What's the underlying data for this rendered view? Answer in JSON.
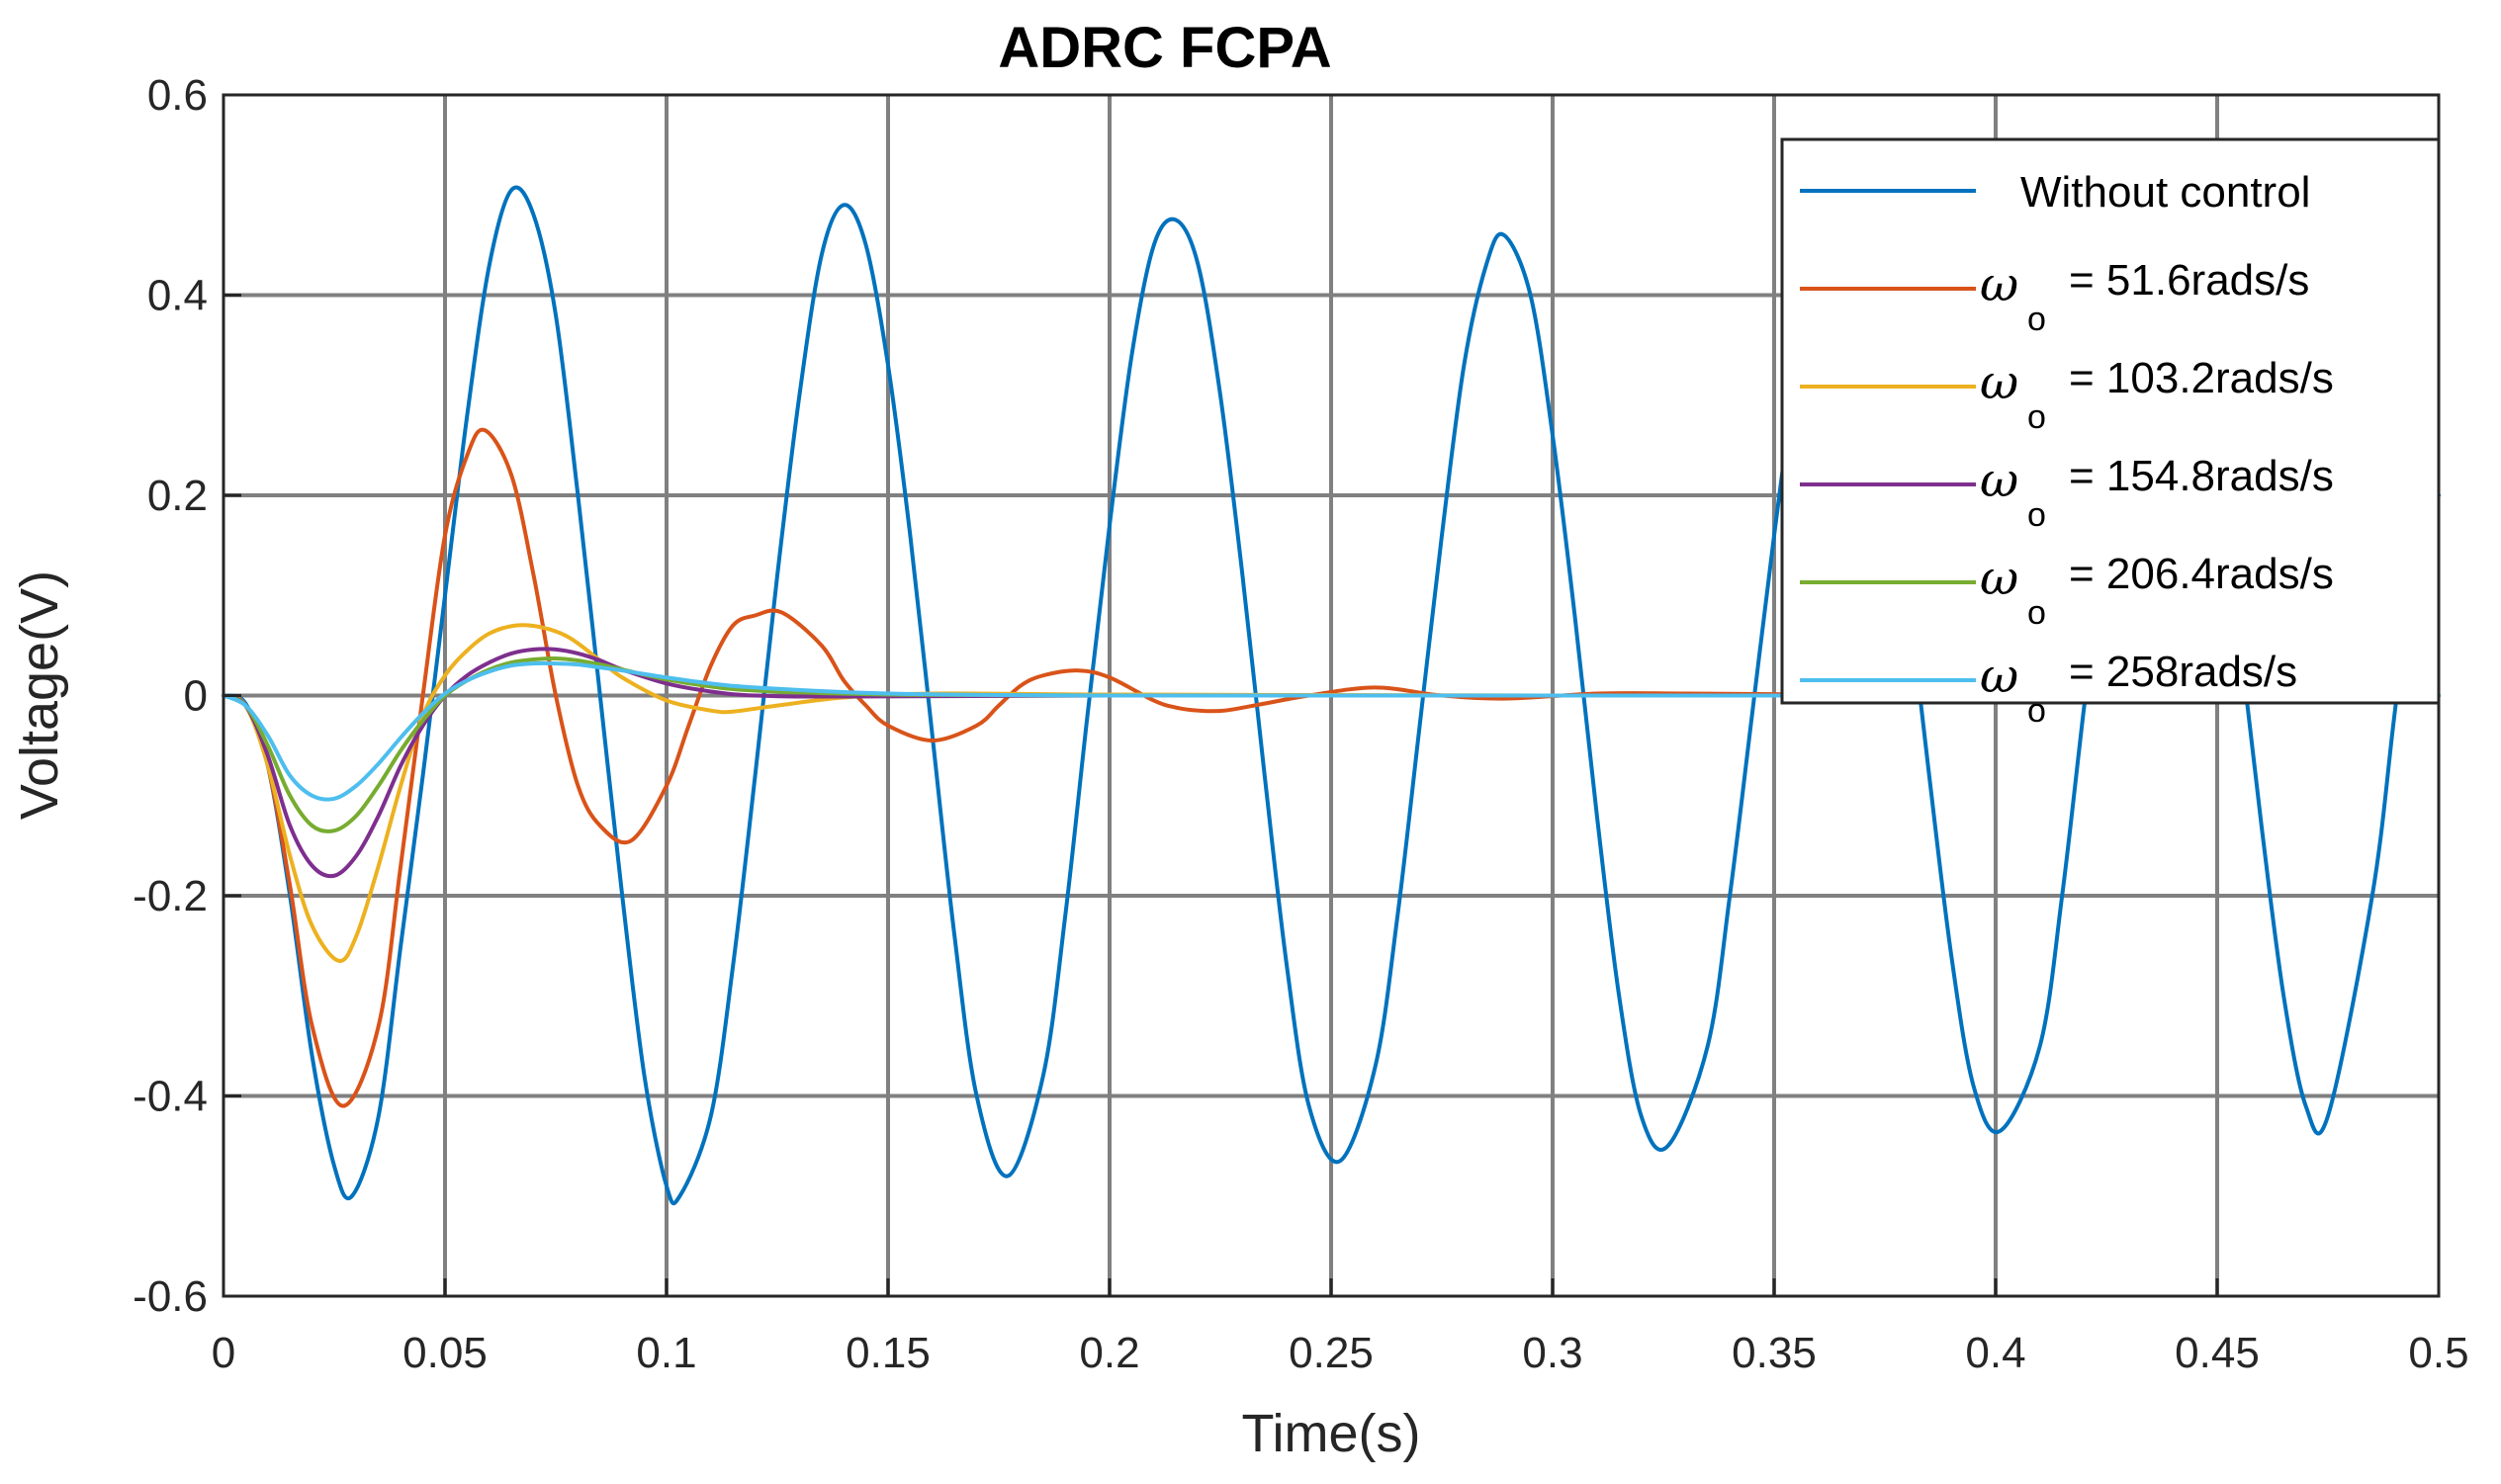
{
  "chart_data": {
    "type": "line",
    "title": "ADRC FCPA",
    "xlabel": "Time(s)",
    "ylabel": "Voltage(V)",
    "xlim": [
      0,
      0.5
    ],
    "ylim": [
      -0.6,
      0.6
    ],
    "grid": true,
    "legend_position": "top-right",
    "x_ticks": [
      0,
      0.05,
      0.1,
      0.15,
      0.2,
      0.25,
      0.3,
      0.35,
      0.4,
      0.45,
      0.5
    ],
    "x_tick_labels": [
      "0",
      "0.05",
      "0.1",
      "0.15",
      "0.2",
      "0.25",
      "0.3",
      "0.35",
      "0.4",
      "0.45",
      "0.5"
    ],
    "y_ticks": [
      -0.6,
      -0.4,
      -0.2,
      0,
      0.2,
      0.4,
      0.6
    ],
    "y_tick_labels": [
      "-0.6",
      "-0.4",
      "-0.2",
      "0",
      "0.2",
      "0.4",
      "0.6"
    ],
    "series": [
      {
        "name": "Without control",
        "legend_label": "Without control",
        "color": "#0072BD",
        "x": [
          0,
          0.005,
          0.01,
          0.015,
          0.02,
          0.025,
          0.029,
          0.035,
          0.04,
          0.045,
          0.05,
          0.055,
          0.06,
          0.065,
          0.07,
          0.075,
          0.08,
          0.085,
          0.09,
          0.095,
          0.1,
          0.103,
          0.11,
          0.115,
          0.12,
          0.125,
          0.13,
          0.135,
          0.14,
          0.145,
          0.15,
          0.155,
          0.16,
          0.165,
          0.17,
          0.177,
          0.185,
          0.19,
          0.195,
          0.2,
          0.205,
          0.21,
          0.215,
          0.22,
          0.225,
          0.23,
          0.235,
          0.24,
          0.245,
          0.252,
          0.26,
          0.265,
          0.27,
          0.275,
          0.28,
          0.285,
          0.289,
          0.295,
          0.3,
          0.305,
          0.31,
          0.315,
          0.32,
          0.326,
          0.335,
          0.34,
          0.345,
          0.35,
          0.355,
          0.36,
          0.364,
          0.37,
          0.375,
          0.38,
          0.385,
          0.39,
          0.395,
          0.401,
          0.41,
          0.415,
          0.42,
          0.425,
          0.43,
          0.435,
          0.439,
          0.445,
          0.45,
          0.455,
          0.46,
          0.465,
          0.47,
          0.475,
          0.485,
          0.49,
          0.495,
          0.5
        ],
        "y": [
          0,
          -0.008,
          -0.07,
          -0.2,
          -0.36,
          -0.47,
          -0.5,
          -0.42,
          -0.25,
          -0.08,
          0.1,
          0.28,
          0.43,
          0.505,
          0.48,
          0.38,
          0.2,
          0.0,
          -0.2,
          -0.38,
          -0.49,
          -0.5,
          -0.42,
          -0.27,
          -0.08,
          0.12,
          0.3,
          0.44,
          0.49,
          0.45,
          0.33,
          0.16,
          -0.04,
          -0.24,
          -0.4,
          -0.48,
          -0.38,
          -0.22,
          -0.02,
          0.17,
          0.34,
          0.45,
          0.475,
          0.43,
          0.3,
          0.12,
          -0.08,
          -0.27,
          -0.41,
          -0.465,
          -0.37,
          -0.22,
          -0.03,
          0.16,
          0.33,
          0.43,
          0.46,
          0.4,
          0.26,
          0.08,
          -0.12,
          -0.3,
          -0.42,
          -0.45,
          -0.35,
          -0.2,
          -0.02,
          0.16,
          0.32,
          0.42,
          0.445,
          0.4,
          0.28,
          0.11,
          -0.08,
          -0.26,
          -0.39,
          -0.435,
          -0.35,
          -0.2,
          -0.01,
          0.17,
          0.33,
          0.41,
          0.43,
          0.37,
          0.24,
          0.06,
          -0.13,
          -0.3,
          -0.41,
          -0.42,
          -0.2,
          -0.02,
          0.16,
          0.2
        ]
      },
      {
        "name": "omega_o = 51.6rads/s",
        "legend_label": "= 51.6rads/s",
        "color": "#D95319",
        "x": [
          0,
          0.005,
          0.01,
          0.015,
          0.02,
          0.027,
          0.035,
          0.04,
          0.045,
          0.05,
          0.055,
          0.059,
          0.065,
          0.07,
          0.075,
          0.08,
          0.085,
          0.092,
          0.1,
          0.105,
          0.11,
          0.115,
          0.12,
          0.126,
          0.135,
          0.14,
          0.145,
          0.15,
          0.16,
          0.17,
          0.175,
          0.18,
          0.185,
          0.193,
          0.2,
          0.21,
          0.215,
          0.22,
          0.226,
          0.235,
          0.245,
          0.26,
          0.275,
          0.29,
          0.31,
          0.33,
          0.36,
          0.4,
          0.5
        ],
        "y": [
          0,
          -0.01,
          -0.07,
          -0.19,
          -0.33,
          -0.41,
          -0.33,
          -0.17,
          0.0,
          0.16,
          0.24,
          0.265,
          0.22,
          0.12,
          0.0,
          -0.09,
          -0.13,
          -0.145,
          -0.09,
          -0.03,
          0.03,
          0.07,
          0.08,
          0.083,
          0.05,
          0.015,
          -0.01,
          -0.03,
          -0.045,
          -0.03,
          -0.01,
          0.01,
          0.02,
          0.025,
          0.018,
          -0.005,
          -0.012,
          -0.015,
          -0.015,
          -0.008,
          0.0,
          0.008,
          0.0,
          -0.003,
          0.002,
          0.002,
          0.001,
          0.0,
          0.0
        ]
      },
      {
        "name": "omega_o = 103.2rads/s",
        "legend_label": "= 103.2rads/s",
        "color": "#EDB120",
        "x": [
          0,
          0.005,
          0.01,
          0.015,
          0.02,
          0.026,
          0.03,
          0.035,
          0.04,
          0.045,
          0.05,
          0.055,
          0.06,
          0.066,
          0.072,
          0.078,
          0.085,
          0.09,
          0.1,
          0.11,
          0.115,
          0.125,
          0.14,
          0.16,
          0.2,
          0.3,
          0.5
        ],
        "y": [
          0,
          -0.01,
          -0.07,
          -0.16,
          -0.23,
          -0.265,
          -0.24,
          -0.17,
          -0.09,
          -0.02,
          0.02,
          0.045,
          0.062,
          0.07,
          0.068,
          0.058,
          0.035,
          0.018,
          -0.005,
          -0.015,
          -0.016,
          -0.01,
          -0.002,
          0.002,
          0.001,
          0.0,
          0.0
        ]
      },
      {
        "name": "omega_o = 154.8rads/s",
        "legend_label": "= 154.8rads/s",
        "color": "#7E2F8E",
        "x": [
          0,
          0.005,
          0.01,
          0.015,
          0.02,
          0.025,
          0.03,
          0.035,
          0.04,
          0.045,
          0.05,
          0.055,
          0.06,
          0.065,
          0.07,
          0.075,
          0.08,
          0.085,
          0.09,
          0.1,
          0.11,
          0.12,
          0.14,
          0.2,
          0.3,
          0.5
        ],
        "y": [
          0,
          -0.01,
          -0.06,
          -0.13,
          -0.17,
          -0.18,
          -0.16,
          -0.12,
          -0.07,
          -0.03,
          0.0,
          0.02,
          0.033,
          0.042,
          0.046,
          0.046,
          0.042,
          0.035,
          0.026,
          0.012,
          0.004,
          0.0,
          -0.001,
          0.0,
          0.0,
          0.0
        ]
      },
      {
        "name": "omega_o = 206.4rads/s",
        "legend_label": "= 206.4rads/s",
        "color": "#77AC30",
        "x": [
          0,
          0.005,
          0.01,
          0.015,
          0.02,
          0.025,
          0.03,
          0.035,
          0.04,
          0.045,
          0.05,
          0.055,
          0.06,
          0.065,
          0.07,
          0.075,
          0.08,
          0.085,
          0.09,
          0.1,
          0.11,
          0.12,
          0.15,
          0.2,
          0.3,
          0.5
        ],
        "y": [
          0,
          -0.01,
          -0.05,
          -0.1,
          -0.13,
          -0.135,
          -0.12,
          -0.09,
          -0.055,
          -0.025,
          0.0,
          0.015,
          0.026,
          0.033,
          0.036,
          0.037,
          0.035,
          0.031,
          0.026,
          0.016,
          0.009,
          0.005,
          0.001,
          0.0,
          0.0,
          0.0
        ]
      },
      {
        "name": "omega_o = 258rads/s",
        "legend_label": "= 258rads/s",
        "color": "#4DBEEE",
        "x": [
          0,
          0.005,
          0.01,
          0.015,
          0.02,
          0.025,
          0.03,
          0.035,
          0.04,
          0.045,
          0.05,
          0.055,
          0.06,
          0.065,
          0.07,
          0.075,
          0.08,
          0.085,
          0.09,
          0.1,
          0.11,
          0.12,
          0.15,
          0.2,
          0.3,
          0.5
        ],
        "y": [
          0,
          -0.01,
          -0.04,
          -0.08,
          -0.1,
          -0.103,
          -0.09,
          -0.068,
          -0.042,
          -0.018,
          0.002,
          0.015,
          0.024,
          0.03,
          0.032,
          0.032,
          0.031,
          0.028,
          0.025,
          0.018,
          0.012,
          0.008,
          0.002,
          0.0,
          0.0,
          0.0
        ]
      }
    ]
  }
}
